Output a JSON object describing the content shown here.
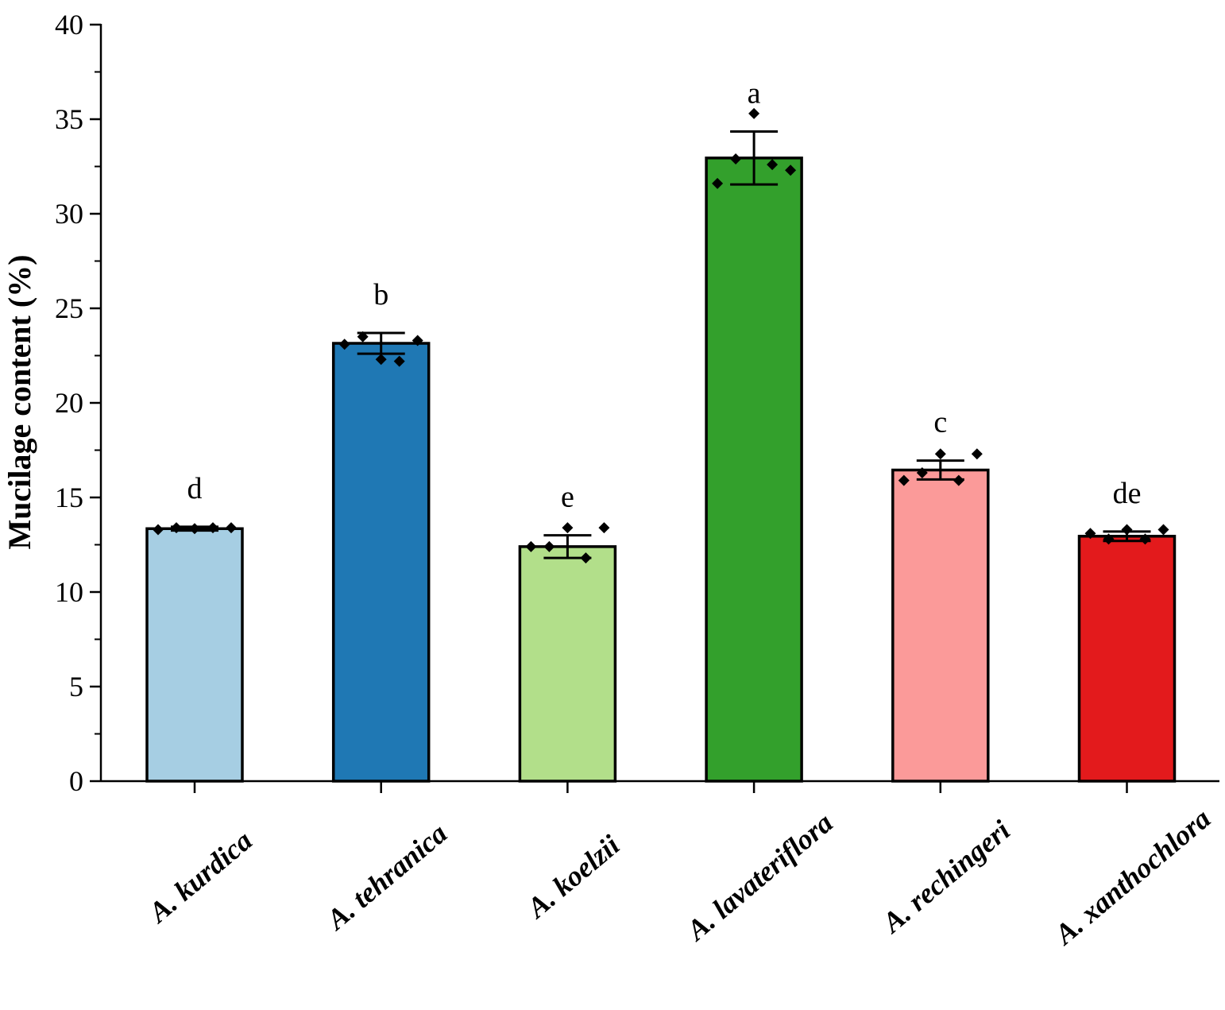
{
  "chart_data": {
    "type": "bar",
    "title": "",
    "xlabel": "",
    "ylabel": "Mucilage content (%)",
    "ylim": [
      0,
      40
    ],
    "yticks": [
      0,
      5,
      10,
      15,
      20,
      25,
      30,
      35,
      40
    ],
    "y_minor_step": 2.5,
    "grid": false,
    "legend": "none",
    "categories": [
      "A. kurdica",
      "A. tehranica",
      "A. koelzii",
      "A. lavateriflora",
      "A. rechingeri",
      "A. xanthochlora"
    ],
    "values": [
      13.35,
      23.15,
      12.4,
      32.95,
      16.45,
      12.95
    ],
    "errors": [
      0.1,
      0.55,
      0.6,
      1.4,
      0.5,
      0.25
    ],
    "significance": [
      "d",
      "b",
      "e",
      "a",
      "c",
      "de"
    ],
    "colors": [
      "#a6cee3",
      "#1f78b4",
      "#b2df8a",
      "#33a02c",
      "#fb9a99",
      "#e31a1c"
    ],
    "points": [
      [
        13.3,
        13.4,
        13.35,
        13.4,
        13.4
      ],
      [
        23.1,
        23.5,
        22.3,
        22.2,
        23.3
      ],
      [
        12.4,
        12.4,
        13.4,
        11.8,
        13.4
      ],
      [
        31.6,
        32.9,
        35.3,
        32.6,
        32.3
      ],
      [
        15.9,
        16.3,
        17.3,
        15.9,
        17.3
      ],
      [
        13.1,
        12.8,
        13.3,
        12.8,
        13.3
      ]
    ]
  }
}
